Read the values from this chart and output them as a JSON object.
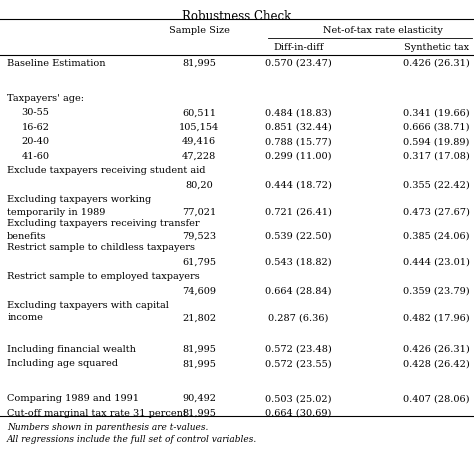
{
  "title": "Robustness Check",
  "bg_color": "#ffffff",
  "text_color": "#000000",
  "font_size": 7.0,
  "title_font_size": 8.5,
  "footnote_font_size": 6.5,
  "col_x": {
    "label": 0.015,
    "sample": 0.42,
    "did": 0.63,
    "syn": 0.855
  },
  "rows": [
    {
      "label": "Baseline Estimation",
      "label2": "",
      "indent": false,
      "sample": "81,995",
      "did": "0.570 (23.47)",
      "syn": "0.426 (26.31)",
      "extra_before": 0
    },
    {
      "label": "",
      "label2": "",
      "indent": false,
      "sample": "",
      "did": "",
      "syn": "",
      "extra_before": 0.4
    },
    {
      "label": "Taxpayers' age:",
      "label2": "",
      "indent": false,
      "sample": "",
      "did": "",
      "syn": "",
      "extra_before": 0
    },
    {
      "label": "30-55",
      "label2": "",
      "indent": true,
      "sample": "60,511",
      "did": "0.484 (18.83)",
      "syn": "0.341 (19.66)",
      "extra_before": 0
    },
    {
      "label": "16-62",
      "label2": "",
      "indent": true,
      "sample": "105,154",
      "did": "0.851 (32.44)",
      "syn": "0.666 (38.71)",
      "extra_before": 0
    },
    {
      "label": "20-40",
      "label2": "",
      "indent": true,
      "sample": "49,416",
      "did": "0.788 (15.77)",
      "syn": "0.594 (19.89)",
      "extra_before": 0
    },
    {
      "label": "41-60",
      "label2": "",
      "indent": true,
      "sample": "47,228",
      "did": "0.299 (11.00)",
      "syn": "0.317 (17.08)",
      "extra_before": 0
    },
    {
      "label": "Exclude taxpayers receiving student aid",
      "label2": "",
      "indent": false,
      "sample": "",
      "did": "",
      "syn": "",
      "extra_before": 0
    },
    {
      "label": "",
      "label2": "",
      "indent": false,
      "sample": "80,20",
      "did": "0.444 (18.72)",
      "syn": "0.355 (22.42)",
      "extra_before": 0
    },
    {
      "label": "Excluding taxpayers working",
      "label2": "temporarily in 1989",
      "indent": false,
      "sample": "77,021",
      "did": "0.721 (26.41)",
      "syn": "0.473 (27.67)",
      "extra_before": 0
    },
    {
      "label": "Excluding taxpayers receiving transfer",
      "label2": "benefits",
      "indent": false,
      "sample": "79,523",
      "did": "0.539 (22.50)",
      "syn": "0.385 (24.06)",
      "extra_before": 0
    },
    {
      "label": "Restrict sample to childless taxpayers",
      "label2": "",
      "indent": false,
      "sample": "",
      "did": "",
      "syn": "",
      "extra_before": 0
    },
    {
      "label": "",
      "label2": "",
      "indent": false,
      "sample": "61,795",
      "did": "0.543 (18.82)",
      "syn": "0.444 (23.01)",
      "extra_before": 0
    },
    {
      "label": "Restrict sample to employed taxpayers",
      "label2": "",
      "indent": false,
      "sample": "",
      "did": "",
      "syn": "",
      "extra_before": 0
    },
    {
      "label": "",
      "label2": "",
      "indent": false,
      "sample": "74,609",
      "did": "0.664 (28.84)",
      "syn": "0.359 (23.79)",
      "extra_before": 0
    },
    {
      "label": "Excluding taxpayers with capital",
      "label2": "income",
      "indent": false,
      "sample": "21,802",
      "did": "0.287 (6.36)",
      "syn": "0.482 (17.96)",
      "extra_before": 0
    },
    {
      "label": "",
      "label2": "",
      "indent": false,
      "sample": "",
      "did": "",
      "syn": "",
      "extra_before": 0.4
    },
    {
      "label": "Including financial wealth",
      "label2": "",
      "indent": false,
      "sample": "81,995",
      "did": "0.572 (23.48)",
      "syn": "0.426 (26.31)",
      "extra_before": 0
    },
    {
      "label": "Including age squared",
      "label2": "",
      "indent": false,
      "sample": "81,995",
      "did": "0.572 (23.55)",
      "syn": "0.428 (26.42)",
      "extra_before": 0
    },
    {
      "label": "",
      "label2": "",
      "indent": false,
      "sample": "",
      "did": "",
      "syn": "",
      "extra_before": 0.4
    },
    {
      "label": "Comparing 1989 and 1991",
      "label2": "",
      "indent": false,
      "sample": "90,492",
      "did": "0.503 (25.02)",
      "syn": "0.407 (28.06)",
      "extra_before": 0
    },
    {
      "label": "Cut-off marginal tax rate 31 percent",
      "label2": "",
      "indent": false,
      "sample": "81,995",
      "did": "0.664 (30.69)",
      "syn": "",
      "extra_before": 0
    }
  ],
  "footnotes": [
    "Numbers shown in parenthesis are t-values.",
    "All regressions include the full set of control variables."
  ]
}
